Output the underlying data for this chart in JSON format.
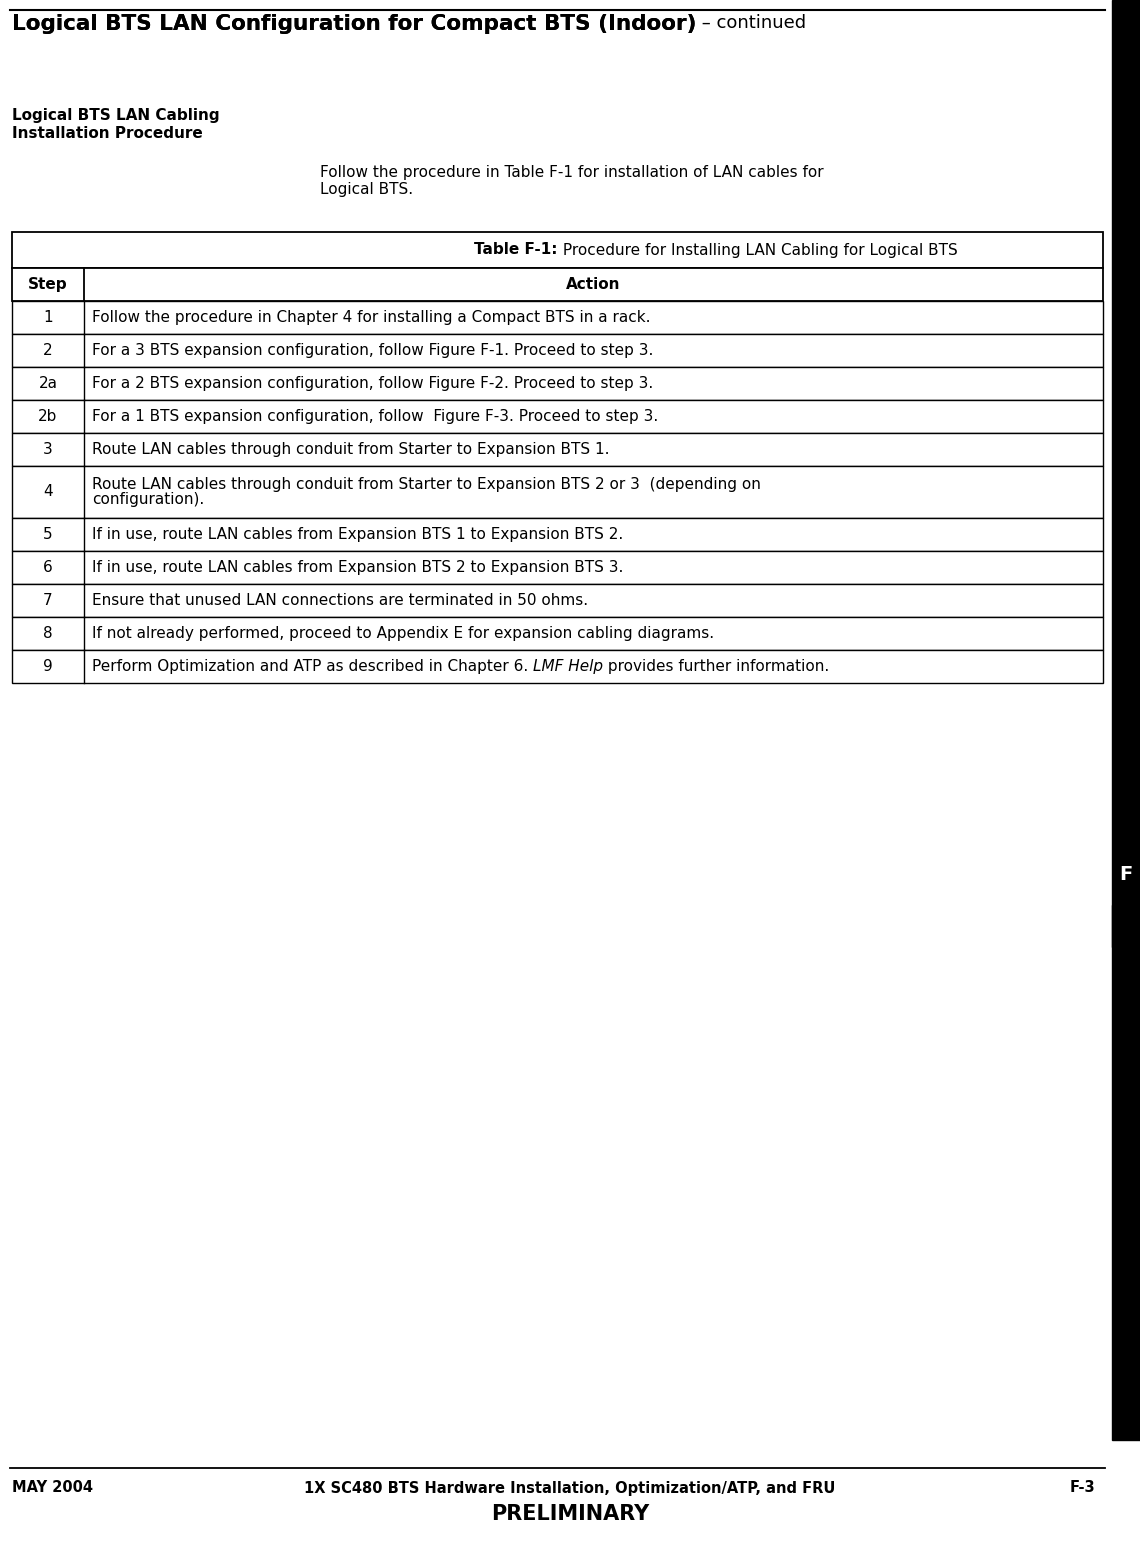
{
  "page_title_bold": "Logical BTS LAN Configuration for Compact BTS (Indoor)",
  "page_title_normal": " – continued",
  "section_heading1": "Logical BTS LAN Cabling",
  "section_heading2": "Installation Procedure",
  "intro_text": "Follow the procedure in Table F-1 for installation of LAN cables for\nLogical BTS.",
  "table_title_bold": "Table F-1:",
  "table_title_normal": " Procedure for Installing LAN Cabling for Logical BTS",
  "col_headers": [
    "Step",
    "Action"
  ],
  "rows": [
    [
      "1",
      "Follow the procedure in Chapter 4 for installing a Compact BTS in a rack."
    ],
    [
      "2",
      "For a 3 BTS expansion configuration, follow Figure F-1. Proceed to step 3."
    ],
    [
      "2a",
      "For a 2 BTS expansion configuration, follow Figure F-2. Proceed to step 3."
    ],
    [
      "2b",
      "For a 1 BTS expansion configuration, follow  Figure F-3. Proceed to step 3."
    ],
    [
      "3",
      "Route LAN cables through conduit from Starter to Expansion BTS 1."
    ],
    [
      "4",
      "Route LAN cables through conduit from Starter to Expansion BTS 2 or 3  (depending on\nconfiguration)."
    ],
    [
      "5",
      "If in use, route LAN cables from Expansion BTS 1 to Expansion BTS 2."
    ],
    [
      "6",
      "If in use, route LAN cables from Expansion BTS 2 to Expansion BTS 3."
    ],
    [
      "7",
      "Ensure that unused LAN connections are terminated in 50 ohms."
    ],
    [
      "8",
      "If not already performed, proceed to Appendix E for expansion cabling diagrams."
    ],
    [
      "9",
      "Perform Optimization and ATP as described in Chapter 6. |LMF Help| provides further information."
    ]
  ],
  "footer_left": "MAY 2004",
  "footer_center": "1X SC480 BTS Hardware Installation, Optimization/ATP, and FRU",
  "footer_right": "F-3",
  "footer_sub": "PRELIMINARY",
  "sidebar_letter": "F",
  "bg_color": "#ffffff",
  "text_color": "#000000"
}
